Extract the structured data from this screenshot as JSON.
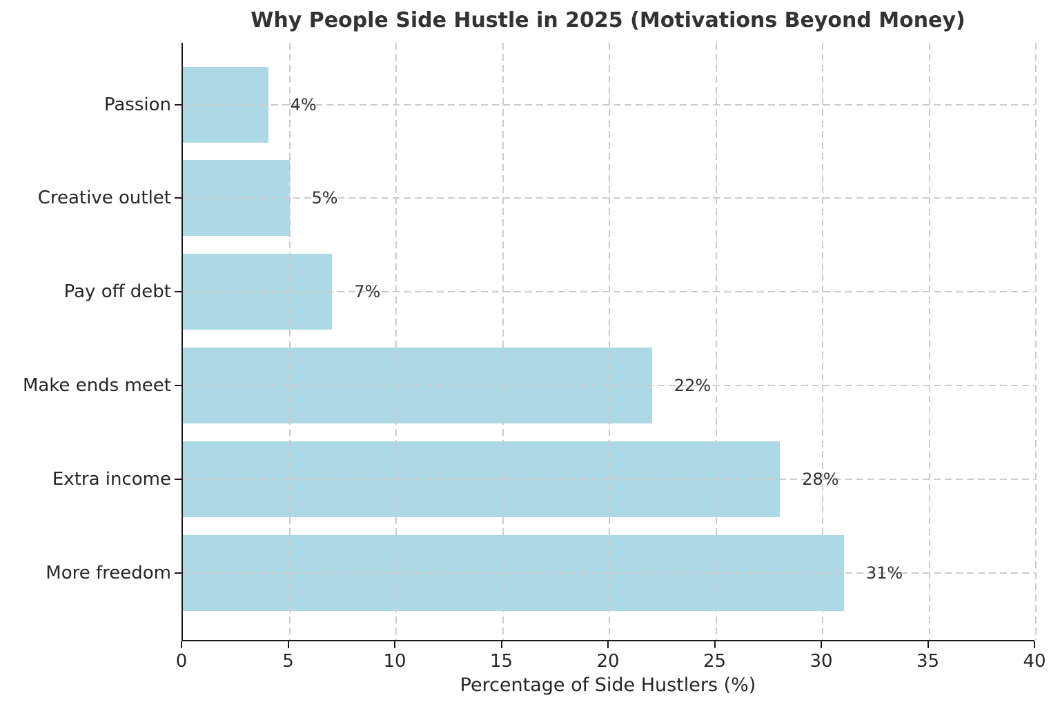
{
  "chart_data": {
    "type": "bar",
    "orientation": "horizontal",
    "title": "Why People Side Hustle in 2025 (Motivations Beyond Money)",
    "xlabel": "Percentage of Side Hustlers (%)",
    "ylabel": "",
    "categories": [
      "Passion",
      "Creative outlet",
      "Pay off debt",
      "Make ends meet",
      "Extra income",
      "More freedom"
    ],
    "values": [
      4,
      5,
      7,
      22,
      28,
      31
    ],
    "value_labels": [
      "4%",
      "5%",
      "7%",
      "22%",
      "28%",
      "31%"
    ],
    "xlim": [
      0,
      40
    ],
    "xticks": [
      0,
      5,
      10,
      15,
      20,
      25,
      30,
      35,
      40
    ],
    "grid": "dashed-both-axes-over-bars",
    "legend": "none",
    "colors": {
      "bar": "#ADD8E6",
      "gridline": "#cccccc",
      "spine": "#1a1a1a",
      "title_text": "#333333",
      "tick_text": "#262626",
      "value_label_text": "#333333"
    }
  }
}
